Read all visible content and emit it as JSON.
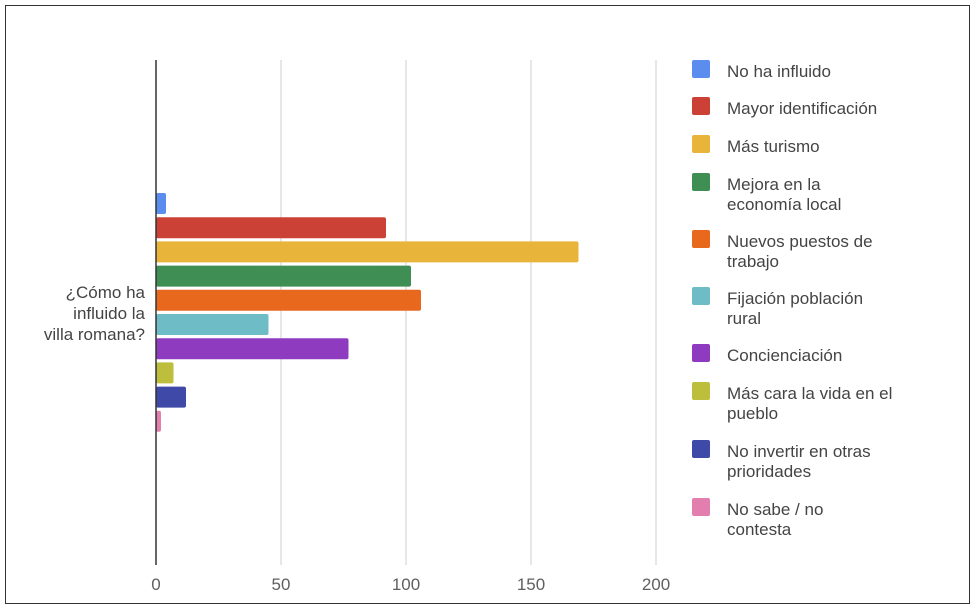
{
  "chart_data": {
    "type": "bar",
    "orientation": "horizontal",
    "categories": [
      "¿Cómo ha influido la villa romana?"
    ],
    "category_label_lines": [
      "¿Cómo ha",
      "influido la",
      "villa romana?"
    ],
    "series": [
      {
        "name": "No ha influido",
        "label_lines": [
          "No ha influido"
        ],
        "values": [
          4
        ],
        "color": "#5b8def"
      },
      {
        "name": "Mayor identificación",
        "label_lines": [
          "Mayor identificación"
        ],
        "values": [
          92
        ],
        "color": "#cc4136"
      },
      {
        "name": "Más turismo",
        "label_lines": [
          "Más turismo"
        ],
        "values": [
          169
        ],
        "color": "#e8b43a"
      },
      {
        "name": "Mejora en la economía local",
        "label_lines": [
          "Mejora en la",
          "economía local"
        ],
        "values": [
          102
        ],
        "color": "#3f8f55"
      },
      {
        "name": "Nuevos puestos de trabajo",
        "label_lines": [
          "Nuevos puestos de",
          "trabajo"
        ],
        "values": [
          106
        ],
        "color": "#e8691e"
      },
      {
        "name": "Fijación población rural",
        "label_lines": [
          "Fijación población",
          "rural"
        ],
        "values": [
          45
        ],
        "color": "#6dbcc6"
      },
      {
        "name": "Concienciación",
        "label_lines": [
          "Concienciación"
        ],
        "values": [
          77
        ],
        "color": "#8e3bbf"
      },
      {
        "name": "Más cara la vida en el pueblo",
        "label_lines": [
          "Más cara la vida en el",
          "pueblo"
        ],
        "values": [
          7
        ],
        "color": "#bdbf3c"
      },
      {
        "name": "No invertir en otras prioridades",
        "label_lines": [
          "No invertir en otras",
          "prioridades"
        ],
        "values": [
          12
        ],
        "color": "#3f4aa8"
      },
      {
        "name": "No sabe / no contesta",
        "label_lines": [
          "No sabe / no",
          "contesta"
        ],
        "values": [
          2
        ],
        "color": "#e27fae"
      }
    ],
    "xlim": [
      0,
      200
    ],
    "xticks": [
      "0",
      "50",
      "100",
      "150",
      "200"
    ],
    "grid": true,
    "legend_position": "right",
    "title": "",
    "xlabel": "",
    "ylabel": ""
  }
}
